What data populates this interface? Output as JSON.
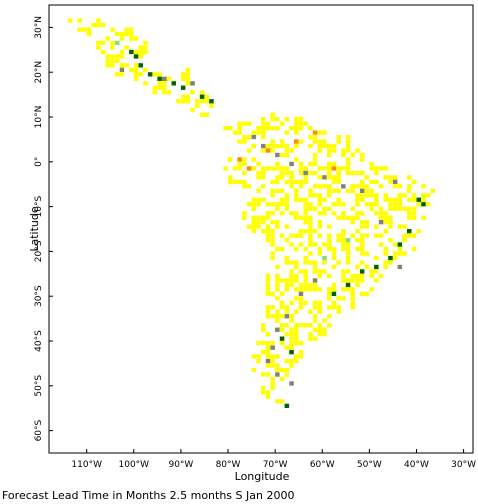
{
  "figure": {
    "x_axis_label": "Longitude",
    "y_axis_label": "Latitude",
    "caption": "Forecast Lead Time in Months 2.5 months S Jan 2000"
  },
  "axes": {
    "lon_range": [
      -118,
      -28
    ],
    "lat_range": [
      35,
      -65
    ],
    "lon_ticks": [
      {
        "value": -110,
        "label": "110°W"
      },
      {
        "value": -100,
        "label": "100°W"
      },
      {
        "value": -90,
        "label": "90°W"
      },
      {
        "value": -80,
        "label": "80°W"
      },
      {
        "value": -70,
        "label": "70°W"
      },
      {
        "value": -60,
        "label": "60°W"
      },
      {
        "value": -50,
        "label": "50°W"
      },
      {
        "value": -40,
        "label": "40°W"
      },
      {
        "value": -30,
        "label": "30°W"
      }
    ],
    "lat_ticks": [
      {
        "value": 30,
        "label": "30°N"
      },
      {
        "value": 20,
        "label": "20°N"
      },
      {
        "value": 10,
        "label": "10°N"
      },
      {
        "value": 0,
        "label": "0°"
      },
      {
        "value": -10,
        "label": "10°S"
      },
      {
        "value": -20,
        "label": "20°S"
      },
      {
        "value": -30,
        "label": "30°S"
      },
      {
        "value": -40,
        "label": "40°S"
      },
      {
        "value": -50,
        "label": "50°S"
      },
      {
        "value": -60,
        "label": "60°S"
      }
    ]
  },
  "colors": {
    "yellow": "#ffff00",
    "gray": "#808080",
    "dark_green": "#006400",
    "light_green": "#80e080",
    "orange": "#ff8c00"
  },
  "chart_data": {
    "type": "heatmap",
    "cell_size_deg": 1,
    "land_region_outline": {
      "north_america": [
        [
          -117,
          32
        ],
        [
          -108,
          32
        ],
        [
          -100,
          30
        ],
        [
          -97,
          27
        ],
        [
          -97,
          22
        ],
        [
          -92,
          19
        ],
        [
          -88,
          21
        ],
        [
          -87,
          16
        ],
        [
          -83,
          15
        ],
        [
          -83,
          9
        ],
        [
          -78,
          8
        ],
        [
          -78,
          6
        ],
        [
          -92,
          14
        ],
        [
          -97,
          16
        ],
        [
          -105,
          20
        ],
        [
          -106,
          23
        ],
        [
          -109,
          27
        ],
        [
          -114,
          31
        ],
        [
          -117,
          32
        ]
      ],
      "south_america": [
        [
          -78,
          9
        ],
        [
          -72,
          11
        ],
        [
          -65,
          10
        ],
        [
          -60,
          8
        ],
        [
          -52,
          5
        ],
        [
          -50,
          0
        ],
        [
          -44,
          -2
        ],
        [
          -38,
          -4
        ],
        [
          -35,
          -7
        ],
        [
          -38,
          -13
        ],
        [
          -40,
          -20
        ],
        [
          -45,
          -23
        ],
        [
          -48,
          -27
        ],
        [
          -52,
          -32
        ],
        [
          -57,
          -35
        ],
        [
          -58,
          -38
        ],
        [
          -62,
          -40
        ],
        [
          -65,
          -45
        ],
        [
          -67,
          -48
        ],
        [
          -68,
          -52
        ],
        [
          -68,
          -55
        ],
        [
          -71,
          -54
        ],
        [
          -74,
          -50
        ],
        [
          -75,
          -45
        ],
        [
          -73,
          -38
        ],
        [
          -72,
          -30
        ],
        [
          -71,
          -20
        ],
        [
          -76,
          -14
        ],
        [
          -80,
          -6
        ],
        [
          -81,
          -3
        ],
        [
          -80,
          1
        ],
        [
          -78,
          9
        ]
      ]
    },
    "highlighted_cells": [
      {
        "lon": -101,
        "lat": 24,
        "category": "dark_green"
      },
      {
        "lon": -100,
        "lat": 23,
        "category": "dark_green"
      },
      {
        "lon": -99,
        "lat": 21,
        "category": "dark_green"
      },
      {
        "lon": -97,
        "lat": 19,
        "category": "dark_green"
      },
      {
        "lon": -95,
        "lat": 18,
        "category": "dark_green"
      },
      {
        "lon": -92,
        "lat": 17,
        "category": "dark_green"
      },
      {
        "lon": -90,
        "lat": 16,
        "category": "dark_green"
      },
      {
        "lon": -86,
        "lat": 14,
        "category": "dark_green"
      },
      {
        "lon": -84,
        "lat": 13,
        "category": "dark_green"
      },
      {
        "lon": -103,
        "lat": 20,
        "category": "gray"
      },
      {
        "lon": -94,
        "lat": 18,
        "category": "gray"
      },
      {
        "lon": -88,
        "lat": 17,
        "category": "gray"
      },
      {
        "lon": -104,
        "lat": 26,
        "category": "light_green"
      },
      {
        "lon": -75,
        "lat": 5,
        "category": "gray"
      },
      {
        "lon": -73,
        "lat": 3,
        "category": "gray"
      },
      {
        "lon": -70,
        "lat": 1,
        "category": "gray"
      },
      {
        "lon": -67,
        "lat": -1,
        "category": "gray"
      },
      {
        "lon": -64,
        "lat": -3,
        "category": "gray"
      },
      {
        "lon": -60,
        "lat": -4,
        "category": "gray"
      },
      {
        "lon": -56,
        "lat": -6,
        "category": "gray"
      },
      {
        "lon": -52,
        "lat": -7,
        "category": "gray"
      },
      {
        "lon": -78,
        "lat": 0,
        "category": "orange"
      },
      {
        "lon": -76,
        "lat": -2,
        "category": "orange"
      },
      {
        "lon": -72,
        "lat": 2,
        "category": "orange"
      },
      {
        "lon": -66,
        "lat": 4,
        "category": "orange"
      },
      {
        "lon": -62,
        "lat": 6,
        "category": "orange"
      },
      {
        "lon": -58,
        "lat": -2,
        "category": "orange"
      },
      {
        "lon": -40,
        "lat": -9,
        "category": "dark_green"
      },
      {
        "lon": -39,
        "lat": -10,
        "category": "dark_green"
      },
      {
        "lon": -42,
        "lat": -16,
        "category": "dark_green"
      },
      {
        "lon": -44,
        "lat": -19,
        "category": "dark_green"
      },
      {
        "lon": -46,
        "lat": -22,
        "category": "dark_green"
      },
      {
        "lon": -49,
        "lat": -24,
        "category": "dark_green"
      },
      {
        "lon": -52,
        "lat": -25,
        "category": "dark_green"
      },
      {
        "lon": -55,
        "lat": -28,
        "category": "dark_green"
      },
      {
        "lon": -58,
        "lat": -30,
        "category": "dark_green"
      },
      {
        "lon": -62,
        "lat": -27,
        "category": "gray"
      },
      {
        "lon": -65,
        "lat": -30,
        "category": "gray"
      },
      {
        "lon": -68,
        "lat": -35,
        "category": "gray"
      },
      {
        "lon": -70,
        "lat": -38,
        "category": "gray"
      },
      {
        "lon": -71,
        "lat": -42,
        "category": "gray"
      },
      {
        "lon": -72,
        "lat": -45,
        "category": "gray"
      },
      {
        "lon": -70,
        "lat": -48,
        "category": "gray"
      },
      {
        "lon": -67,
        "lat": -50,
        "category": "gray"
      },
      {
        "lon": -69,
        "lat": -40,
        "category": "dark_green"
      },
      {
        "lon": -67,
        "lat": -43,
        "category": "dark_green"
      },
      {
        "lon": -68,
        "lat": -55,
        "category": "dark_green"
      },
      {
        "lon": -45,
        "lat": -5,
        "category": "gray"
      },
      {
        "lon": -48,
        "lat": -14,
        "category": "gray"
      },
      {
        "lon": -44,
        "lat": -24,
        "category": "gray"
      },
      {
        "lon": -60,
        "lat": -22,
        "category": "light_green"
      },
      {
        "lon": -55,
        "lat": -18,
        "category": "light_green"
      }
    ]
  }
}
